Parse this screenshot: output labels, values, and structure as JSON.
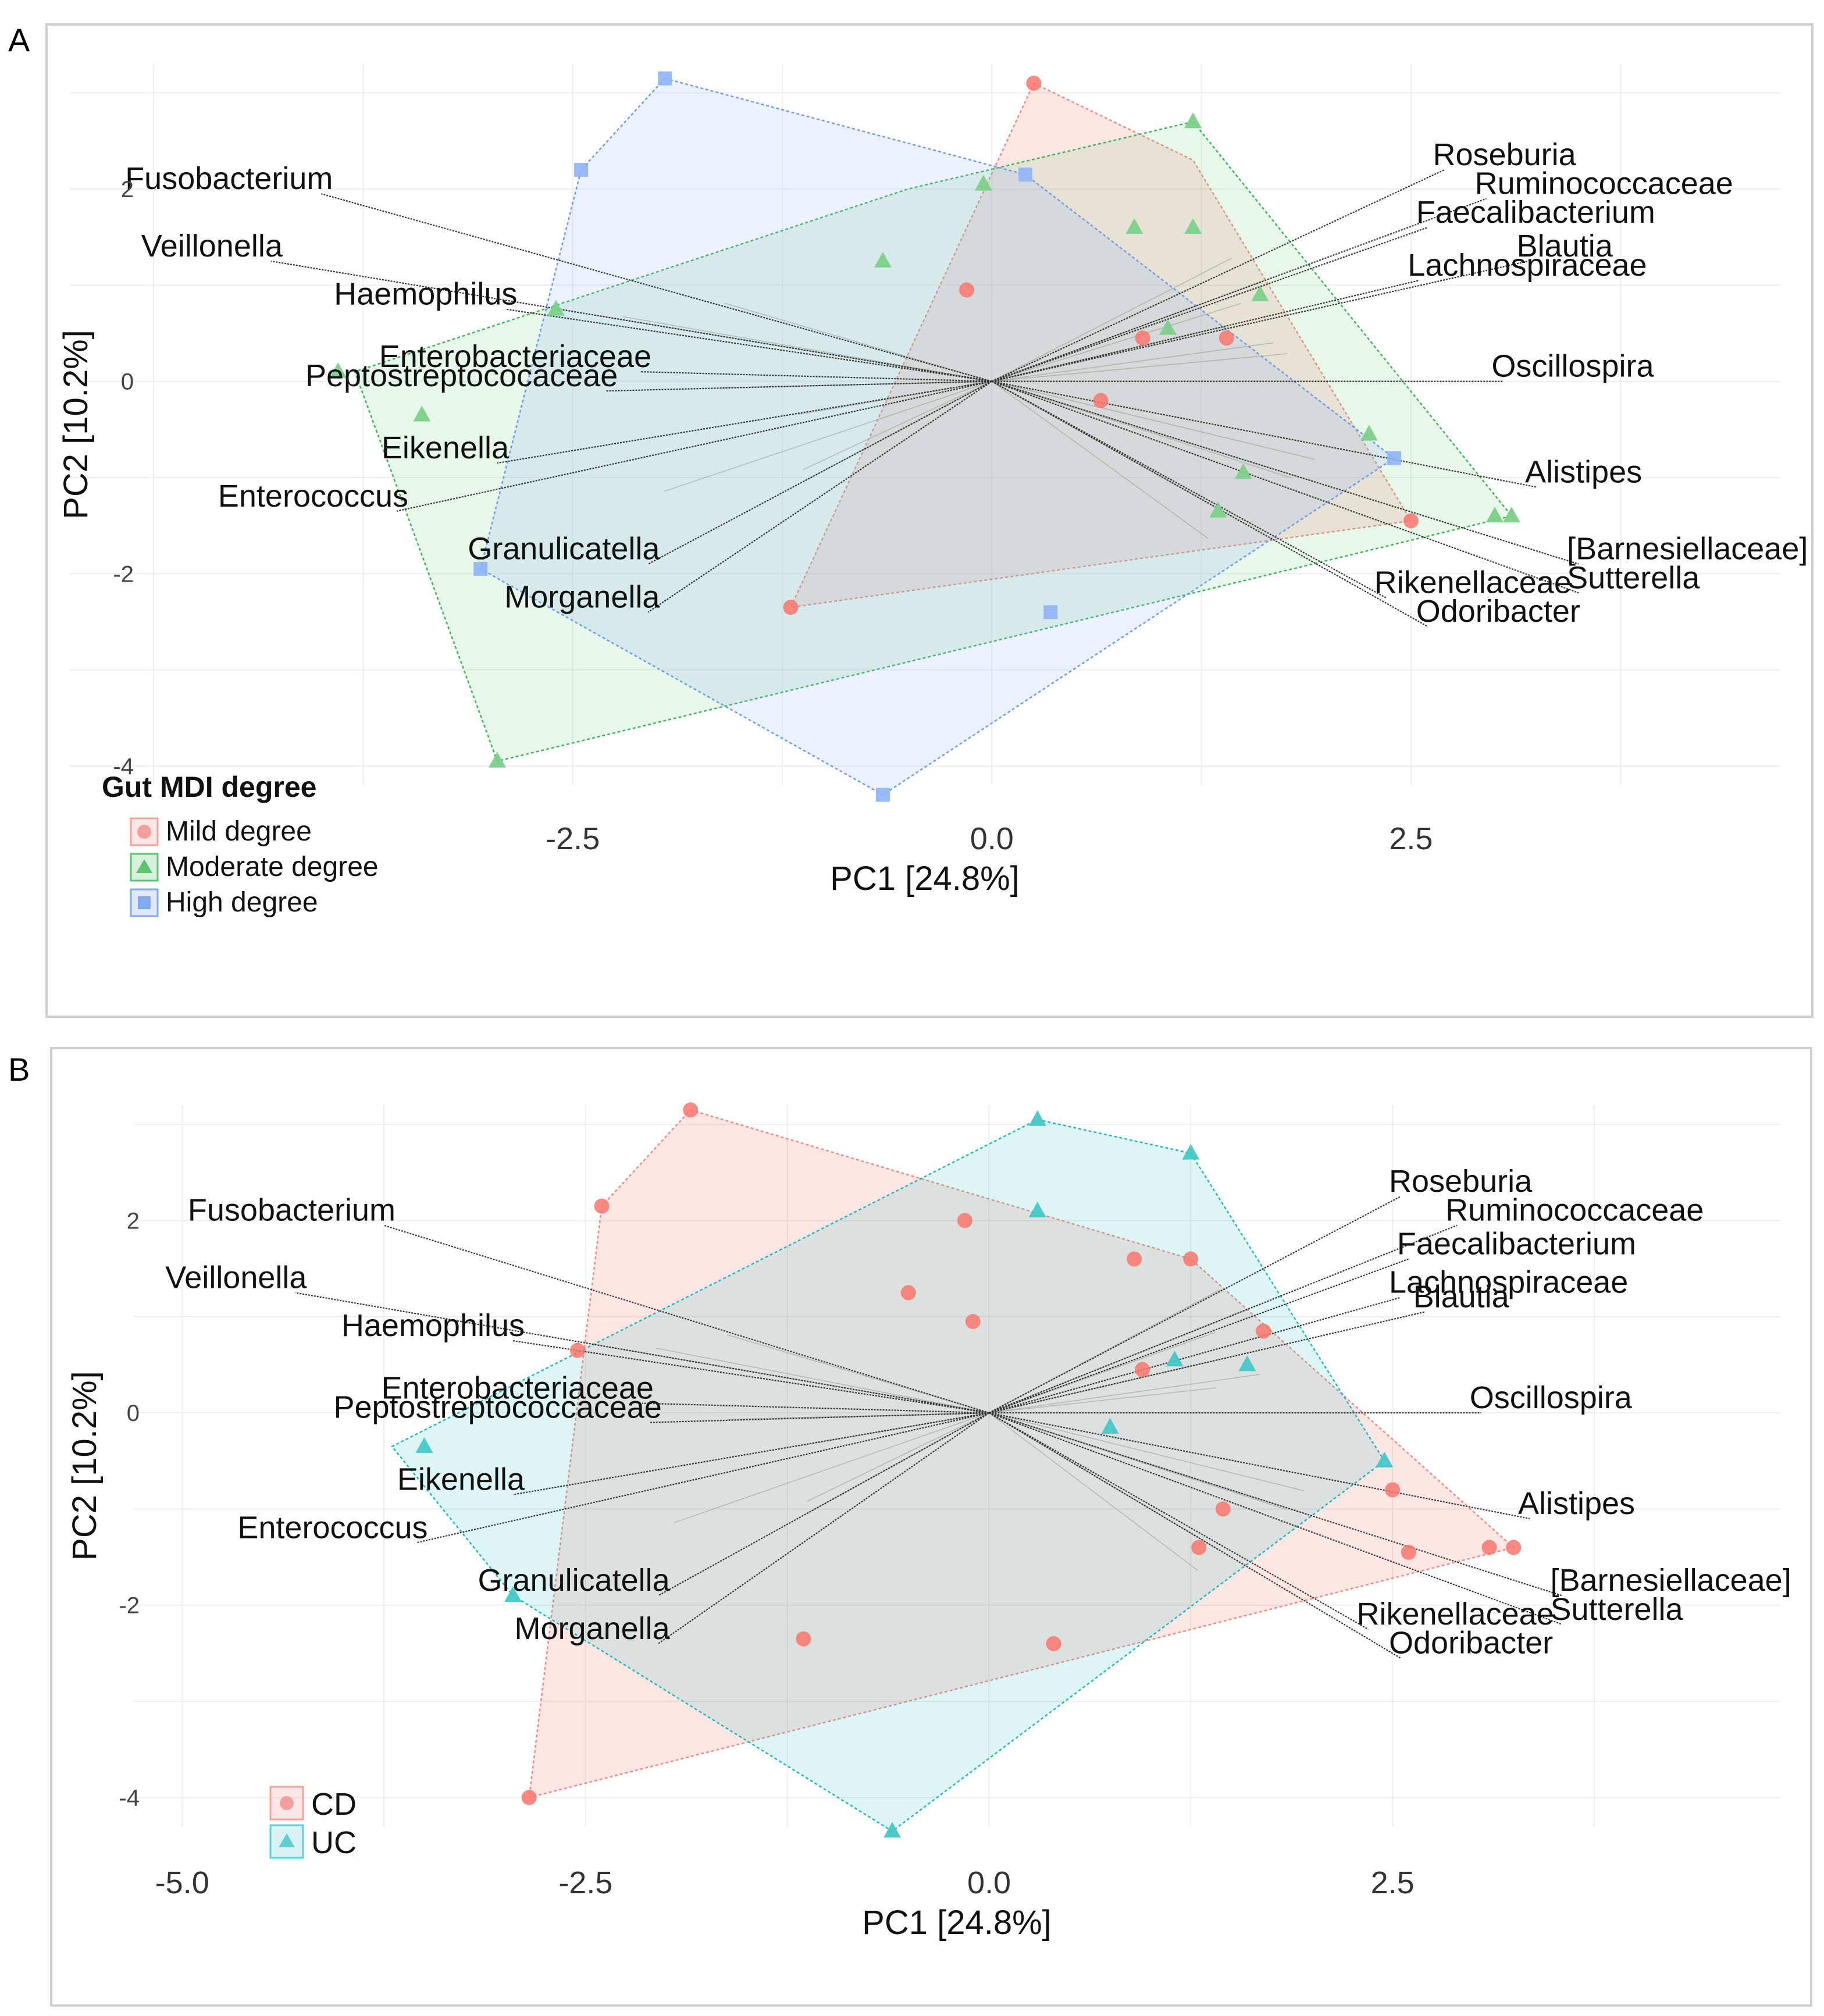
{
  "panels": [
    {
      "letter": "A",
      "chart_data": {
        "type": "scatter",
        "subtype": "PCA biplot with convex hulls",
        "xlabel": "PC1 [24.8%]",
        "ylabel": "PC2 [10.2%]",
        "xticks": [
          "-2.5",
          "0.0",
          "2.5"
        ],
        "xtick_values": [
          -2.5,
          0.0,
          2.5
        ],
        "yticks": [
          "2",
          "0",
          "-2",
          "-4"
        ],
        "ytick_values": [
          2,
          0,
          -2,
          -4
        ],
        "xlim": [
          -5.5,
          4.7
        ],
        "ylim": [
          -4.2,
          3.3
        ],
        "legend": {
          "title": "Gut MDI degree",
          "position": "bottom-left",
          "entries": [
            {
              "label": "Mild degree",
              "color": "#f4a09a",
              "shape": "circle"
            },
            {
              "label": "Moderate degree",
              "color": "#5cc46e",
              "shape": "triangle"
            },
            {
              "label": "High degree",
              "color": "#7fa8f0",
              "shape": "square"
            }
          ]
        },
        "series": [
          {
            "name": "Mild degree",
            "color": "#f08a84",
            "fill": "#f8766d",
            "shape": "circle",
            "hull": [
              [
                0.25,
                3.1
              ],
              [
                1.2,
                2.3
              ],
              [
                2.5,
                -1.45
              ],
              [
                -1.2,
                -2.35
              ]
            ],
            "points": [
              [
                0.25,
                3.1
              ],
              [
                -0.15,
                0.95
              ],
              [
                0.9,
                0.45
              ],
              [
                1.4,
                0.45
              ],
              [
                0.65,
                -0.2
              ],
              [
                2.5,
                -1.45
              ],
              [
                -1.2,
                -2.35
              ]
            ]
          },
          {
            "name": "Moderate degree",
            "color": "#3fb559",
            "fill": "#7cd08a",
            "shape": "triangle",
            "hull": [
              [
                1.2,
                2.7
              ],
              [
                3.1,
                -1.4
              ],
              [
                -2.95,
                -3.95
              ],
              [
                -3.8,
                0.1
              ],
              [
                -0.5,
                2.0
              ]
            ],
            "points": [
              [
                1.2,
                2.7
              ],
              [
                -0.05,
                2.05
              ],
              [
                0.85,
                1.6
              ],
              [
                1.2,
                1.6
              ],
              [
                -0.65,
                1.25
              ],
              [
                1.6,
                0.9
              ],
              [
                -2.6,
                0.75
              ],
              [
                1.05,
                0.55
              ],
              [
                -3.9,
                0.1
              ],
              [
                -3.4,
                -0.35
              ],
              [
                2.25,
                -0.55
              ],
              [
                1.5,
                -0.95
              ],
              [
                1.35,
                -1.35
              ],
              [
                3.0,
                -1.4
              ],
              [
                3.1,
                -1.4
              ],
              [
                -2.95,
                -3.95
              ]
            ]
          },
          {
            "name": "High degree",
            "color": "#6f9bf0",
            "fill": "#8fb4f5",
            "shape": "square",
            "hull": [
              [
                -1.95,
                3.15
              ],
              [
                0.2,
                2.15
              ],
              [
                2.4,
                -0.8
              ],
              [
                -0.65,
                -4.3
              ],
              [
                -3.05,
                -1.95
              ],
              [
                -2.45,
                2.2
              ]
            ],
            "points": [
              [
                -1.95,
                3.15
              ],
              [
                -2.45,
                2.2
              ],
              [
                0.2,
                2.15
              ],
              [
                2.4,
                -0.8
              ],
              [
                0.35,
                -2.4
              ],
              [
                -3.05,
                -1.95
              ],
              [
                -0.65,
                -4.3
              ]
            ]
          }
        ],
        "loadings": [
          {
            "label": "Fusobacterium",
            "x": -4.0,
            "y": 1.95
          },
          {
            "label": "Veillonella",
            "x": -4.3,
            "y": 1.25
          },
          {
            "label": "Haemophilus",
            "x": -2.9,
            "y": 0.75
          },
          {
            "label": "Enterobacteriaceae",
            "x": -2.1,
            "y": 0.1
          },
          {
            "label": "Peptostreptococaceae",
            "x": -2.3,
            "y": -0.1
          },
          {
            "label": "Eikenella",
            "x": -2.95,
            "y": -0.85
          },
          {
            "label": "Enterococcus",
            "x": -3.55,
            "y": -1.35
          },
          {
            "label": "Granulicatella",
            "x": -2.05,
            "y": -1.9
          },
          {
            "label": "Morganella",
            "x": -2.05,
            "y": -2.4
          },
          {
            "label": "Roseburia",
            "x": 2.7,
            "y": 2.2
          },
          {
            "label": "Ruminococcaceae",
            "x": 2.95,
            "y": 1.9
          },
          {
            "label": "Faecalibacterium",
            "x": 2.6,
            "y": 1.6
          },
          {
            "label": "Blautia",
            "x": 3.2,
            "y": 1.25
          },
          {
            "label": "Lachnospiraceae",
            "x": 2.55,
            "y": 1.05
          },
          {
            "label": "Oscillospira",
            "x": 3.05,
            "y": 0.0
          },
          {
            "label": "Alistipes",
            "x": 3.25,
            "y": -1.1
          },
          {
            "label": "[Barnesiellaceae]",
            "x": 3.5,
            "y": -1.9
          },
          {
            "label": "Sutterella",
            "x": 3.5,
            "y": -2.2
          },
          {
            "label": "Rikenellaceae",
            "x": 2.35,
            "y": -2.25
          },
          {
            "label": "Odoribacter",
            "x": 2.6,
            "y": -2.55
          }
        ]
      }
    },
    {
      "letter": "B",
      "chart_data": {
        "type": "scatter",
        "subtype": "PCA biplot with convex hulls",
        "xlabel": "PC1 [24.8%]",
        "ylabel": "PC2 [10.2%]",
        "xticks": [
          "-5.0",
          "-2.5",
          "0.0",
          "2.5"
        ],
        "xtick_values": [
          -5.0,
          -2.5,
          0.0,
          2.5
        ],
        "yticks": [
          "2",
          "0",
          "-2",
          "-4"
        ],
        "ytick_values": [
          2,
          0,
          -2,
          -4
        ],
        "xlim": [
          -5.3,
          4.9
        ],
        "ylim": [
          -4.3,
          3.2
        ],
        "legend": {
          "title": "",
          "position": "bottom-left",
          "entries": [
            {
              "label": "CD",
              "color": "#f4a09a",
              "shape": "circle"
            },
            {
              "label": "UC",
              "color": "#5fcfcf",
              "shape": "triangle"
            }
          ]
        },
        "series": [
          {
            "name": "CD",
            "color": "#f08a84",
            "fill": "#f8766d",
            "shape": "circle",
            "hull": [
              [
                -1.85,
                3.15
              ],
              [
                1.25,
                1.6
              ],
              [
                3.25,
                -1.4
              ],
              [
                -2.85,
                -4.0
              ],
              [
                -2.4,
                2.15
              ]
            ],
            "points": [
              [
                -1.85,
                3.15
              ],
              [
                -2.4,
                2.15
              ],
              [
                -0.15,
                2.0
              ],
              [
                0.9,
                1.6
              ],
              [
                1.25,
                1.6
              ],
              [
                -0.5,
                1.25
              ],
              [
                -0.1,
                0.95
              ],
              [
                1.7,
                0.85
              ],
              [
                -2.55,
                0.65
              ],
              [
                0.95,
                0.45
              ],
              [
                2.5,
                -0.8
              ],
              [
                1.45,
                -1.0
              ],
              [
                1.3,
                -1.4
              ],
              [
                2.6,
                -1.45
              ],
              [
                3.1,
                -1.4
              ],
              [
                3.25,
                -1.4
              ],
              [
                -1.15,
                -2.35
              ],
              [
                0.4,
                -2.4
              ],
              [
                -2.85,
                -4.0
              ]
            ]
          },
          {
            "name": "UC",
            "color": "#26b8b8",
            "fill": "#45c7c7",
            "shape": "triangle",
            "hull": [
              [
                0.3,
                3.05
              ],
              [
                1.25,
                2.7
              ],
              [
                2.45,
                -0.5
              ],
              [
                -0.6,
                -4.35
              ],
              [
                -2.95,
                -1.9
              ],
              [
                -3.7,
                -0.35
              ]
            ],
            "points": [
              [
                0.3,
                3.05
              ],
              [
                1.25,
                2.7
              ],
              [
                0.3,
                2.1
              ],
              [
                1.15,
                0.55
              ],
              [
                1.6,
                0.5
              ],
              [
                0.75,
                -0.15
              ],
              [
                2.45,
                -0.5
              ],
              [
                -3.5,
                -0.35
              ],
              [
                -2.95,
                -1.9
              ],
              [
                -0.6,
                -4.35
              ]
            ]
          }
        ],
        "loadings": [
          {
            "label": "Fusobacterium",
            "x": -3.75,
            "y": 1.95
          },
          {
            "label": "Veillonella",
            "x": -4.3,
            "y": 1.25
          },
          {
            "label": "Haemophilus",
            "x": -2.95,
            "y": 0.75
          },
          {
            "label": "Enterobacteriaceae",
            "x": -2.15,
            "y": 0.1
          },
          {
            "label": "Peptostreptococcaceae",
            "x": -2.1,
            "y": -0.1
          },
          {
            "label": "Eikenella",
            "x": -2.95,
            "y": -0.85
          },
          {
            "label": "Enterococcus",
            "x": -3.55,
            "y": -1.35
          },
          {
            "label": "Granulicatella",
            "x": -2.05,
            "y": -1.9
          },
          {
            "label": "Morganella",
            "x": -2.05,
            "y": -2.4
          },
          {
            "label": "Roseburia",
            "x": 2.55,
            "y": 2.25
          },
          {
            "label": "Ruminococcaceae",
            "x": 2.9,
            "y": 1.95
          },
          {
            "label": "Faecalibacterium",
            "x": 2.6,
            "y": 1.6
          },
          {
            "label": "Lachnospiraceae",
            "x": 2.55,
            "y": 1.2
          },
          {
            "label": "Blautia",
            "x": 2.7,
            "y": 1.05
          },
          {
            "label": "Oscillospira",
            "x": 3.05,
            "y": 0.0
          },
          {
            "label": "Alistipes",
            "x": 3.35,
            "y": -1.1
          },
          {
            "label": "[Barnesiellaceae]",
            "x": 3.55,
            "y": -1.9
          },
          {
            "label": "Sutterella",
            "x": 3.55,
            "y": -2.2
          },
          {
            "label": "Rikenellaceae",
            "x": 2.35,
            "y": -2.25
          },
          {
            "label": "Odoribacter",
            "x": 2.55,
            "y": -2.55
          }
        ]
      }
    }
  ]
}
